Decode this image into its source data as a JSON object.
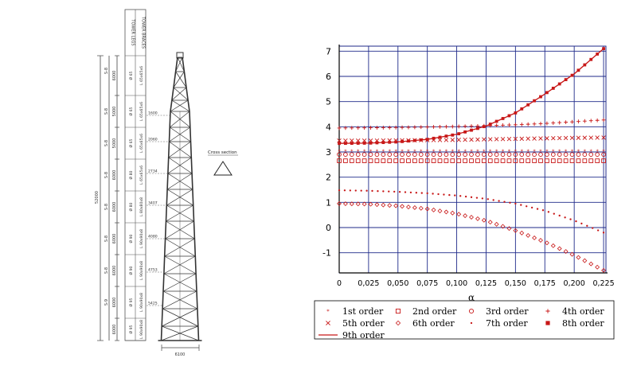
{
  "tower": {
    "header_legs": "TOWER LEGS",
    "header_braces": "TOWER BRACES",
    "total_height": "52000",
    "bracing_type": [
      "S-9",
      "S-8",
      "S-8",
      "S-8",
      "S-8",
      "S-8",
      "S-8",
      "S-8"
    ],
    "segment_lengths": [
      "6000",
      "5000",
      "5000",
      "6000",
      "6000",
      "6000",
      "6000",
      "6000",
      "6000"
    ],
    "legs": [
      "Ø 65",
      "Ø 65",
      "Ø 65",
      "Ø 80",
      "Ø 80",
      "Ø 90",
      "Ø 90",
      "Ø 95",
      "Ø 95"
    ],
    "braces": [
      "L 65x65x6",
      "L 65x65x6",
      "L 65x65x6",
      "L 65x65x6",
      "L 80x80x8",
      "L 90x90x8",
      "L 90x90x8",
      "L 90x90x8",
      "L 90x90x8"
    ],
    "widths": [
      "1600",
      "2060",
      "2734",
      "3407",
      "4080",
      "4753",
      "5425"
    ],
    "base_width": "6100",
    "cross_section_label": "Cross section"
  },
  "chart_data": {
    "type": "scatter",
    "xlabel": "α",
    "ylabel": "",
    "x": [
      0,
      0.025,
      0.05,
      0.075,
      0.1,
      0.125,
      0.15,
      0.175,
      0.2,
      0.225
    ],
    "xticks": [
      "0",
      "0,025",
      "0,050",
      "0,075",
      "0,100",
      "0,125",
      "0,150",
      "0,175",
      "0,200",
      "0,225"
    ],
    "yticks": [
      "-1",
      "0",
      "1",
      "2",
      "3",
      "4",
      "5",
      "6",
      "7"
    ],
    "xlim": [
      0,
      0.227
    ],
    "ylim": [
      -1.8,
      7.2
    ],
    "grid": true,
    "legend_position": "bottom",
    "series": [
      {
        "name": "1st order",
        "marker": "star",
        "values": [
          3.02,
          3.02,
          3.02,
          3.02,
          3.02,
          3.02,
          3.02,
          3.02,
          3.02,
          3.02
        ]
      },
      {
        "name": "2nd order",
        "marker": "square-open",
        "values": [
          2.65,
          2.65,
          2.65,
          2.65,
          2.65,
          2.65,
          2.65,
          2.65,
          2.65,
          2.65
        ]
      },
      {
        "name": "3rd order",
        "marker": "circle-open",
        "values": [
          2.9,
          2.9,
          2.9,
          2.9,
          2.9,
          2.9,
          2.9,
          2.9,
          2.9,
          2.9
        ]
      },
      {
        "name": "4th order",
        "marker": "plus",
        "values": [
          3.95,
          3.96,
          3.97,
          3.99,
          4.01,
          4.04,
          4.08,
          4.13,
          4.2,
          4.27
        ]
      },
      {
        "name": "5th order",
        "marker": "x",
        "values": [
          3.45,
          3.45,
          3.46,
          3.47,
          3.48,
          3.5,
          3.52,
          3.54,
          3.56,
          3.57
        ]
      },
      {
        "name": "6th order",
        "marker": "diamond-open",
        "values": [
          0.95,
          0.93,
          0.86,
          0.74,
          0.55,
          0.27,
          -0.12,
          -0.57,
          -1.1,
          -1.7
        ]
      },
      {
        "name": "7th order",
        "marker": "dot",
        "values": [
          1.48,
          1.46,
          1.42,
          1.36,
          1.27,
          1.14,
          0.95,
          0.67,
          0.28,
          -0.2
        ]
      },
      {
        "name": "8th order",
        "marker": "square-filled",
        "values": [
          3.34,
          3.35,
          3.4,
          3.5,
          3.7,
          4.03,
          4.55,
          5.3,
          6.1,
          7.1
        ]
      },
      {
        "name": "9th order",
        "marker": "line",
        "values": [
          3.34,
          3.35,
          3.4,
          3.5,
          3.7,
          4.03,
          4.55,
          5.3,
          6.1,
          7.1
        ]
      }
    ]
  },
  "colors": {
    "grid": "#1f2a8a",
    "axis": "#000000",
    "series": "#c81818",
    "drawing": "#333333"
  }
}
